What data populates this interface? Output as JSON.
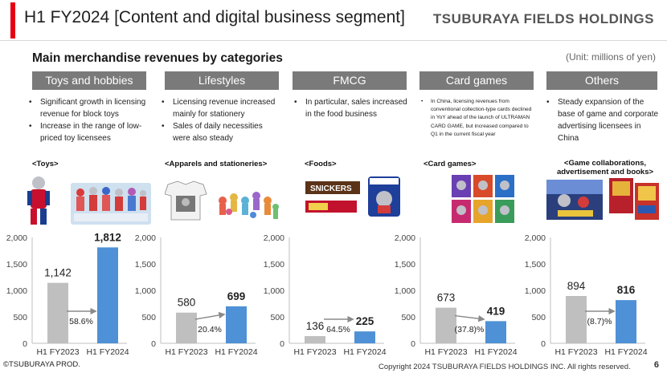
{
  "header": {
    "title": "H1 FY2024 [Content and digital business segment]",
    "company": "TSUBURAYA FIELDS HOLDINGS"
  },
  "subtitle": "Main merchandise revenues by  categories",
  "unit_note": "(Unit: millions of yen)",
  "categories": [
    {
      "name": "Toys and hobbies",
      "bullets": [
        "Significant growth in licensing revenue for block toys",
        "Increase in the range of low-priced toy licensees"
      ],
      "sub_label": "<Toys>",
      "image_icon": "toy-figures-photo"
    },
    {
      "name": "Lifestyles",
      "bullets": [
        "Licensing revenue increased mainly for stationery",
        "Sales of daily necessities were also steady"
      ],
      "sub_label": "<Apparels and stationeries>",
      "image_icon": "apparel-stationery-photo"
    },
    {
      "name": "FMCG",
      "bullets": [
        "In particular, sales increased in the food business"
      ],
      "sub_label": "<Foods>",
      "image_icon": "food-products-photo"
    },
    {
      "name": "Card games",
      "bullets": [
        "In China, licensing revenues from conventional collection-type cards declined in YoY ahead of the launch of ULTRAMAN CARD GAME, but increased compared to Q1 in the current fiscal year"
      ],
      "sub_label": "<Card games>",
      "image_icon": "trading-cards-photo"
    },
    {
      "name": "Others",
      "bullets": [
        "Steady expansion of the base of game and corporate advertising licensees in China"
      ],
      "sub_label": "<Game collaborations, advertisement and books>",
      "image_icon": "game-books-photo"
    }
  ],
  "chart_data": [
    {
      "type": "bar",
      "categories": [
        "H1 FY2023",
        "H1 FY2024"
      ],
      "values": [
        1142,
        1812
      ],
      "value_labels": [
        "1,142",
        "1,812"
      ],
      "change_label": "58.6%",
      "ylim": [
        0,
        2000
      ],
      "yticks": [
        "0",
        "500",
        "1,000",
        "1,500",
        "2,000"
      ],
      "colors": [
        "#bfbfbf",
        "#4e91d6"
      ]
    },
    {
      "type": "bar",
      "categories": [
        "H1 FY2023",
        "H1 FY2024"
      ],
      "values": [
        580,
        699
      ],
      "value_labels": [
        "580",
        "699"
      ],
      "change_label": "20.4%",
      "ylim": [
        0,
        2000
      ],
      "yticks": [
        "0",
        "500",
        "1,000",
        "1,500",
        "2,000"
      ],
      "colors": [
        "#bfbfbf",
        "#4e91d6"
      ]
    },
    {
      "type": "bar",
      "categories": [
        "H1 FY2023",
        "H1 FY2024"
      ],
      "values": [
        136,
        225
      ],
      "value_labels": [
        "136",
        "225"
      ],
      "change_label": "64.5%",
      "ylim": [
        0,
        2000
      ],
      "yticks": [
        "0",
        "500",
        "1,000",
        "1,500",
        "2,000"
      ],
      "colors": [
        "#bfbfbf",
        "#4e91d6"
      ]
    },
    {
      "type": "bar",
      "categories": [
        "H1 FY2023",
        "H1 FY2024"
      ],
      "values": [
        673,
        419
      ],
      "value_labels": [
        "673",
        "419"
      ],
      "change_label": "(37.8)%",
      "ylim": [
        0,
        2000
      ],
      "yticks": [
        "0",
        "500",
        "1,000",
        "1,500",
        "2,000"
      ],
      "colors": [
        "#bfbfbf",
        "#4e91d6"
      ]
    },
    {
      "type": "bar",
      "categories": [
        "H1 FY2023",
        "H1 FY2024"
      ],
      "values": [
        894,
        816
      ],
      "value_labels": [
        "894",
        "816"
      ],
      "change_label": "(8.7)%",
      "ylim": [
        0,
        2000
      ],
      "yticks": [
        "0",
        "500",
        "1,000",
        "1,500",
        "2,000"
      ],
      "colors": [
        "#bfbfbf",
        "#4e91d6"
      ]
    }
  ],
  "footer": {
    "credit": "©TSUBURAYA PROD.",
    "copyright": "Copyright 2024 TSUBURAYA FIELDS HOLDINGS INC. All rights reserved.",
    "page": "6"
  }
}
